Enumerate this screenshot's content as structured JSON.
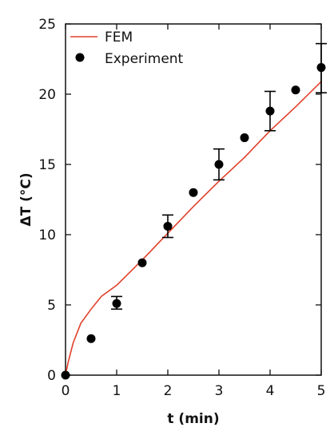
{
  "chart_data": {
    "type": "scatter",
    "xlabel": "t (min)",
    "ylabel": "ΔT (°C)",
    "xlim": [
      0,
      5
    ],
    "ylim": [
      0,
      25
    ],
    "xticks": [
      0,
      1,
      2,
      3,
      4,
      5
    ],
    "yticks": [
      0,
      5,
      10,
      15,
      20,
      25
    ],
    "legend_position": "top-left",
    "grid": false,
    "series": [
      {
        "name": "FEM",
        "kind": "line",
        "color": "#e0402a",
        "x": [
          0,
          0.05,
          0.15,
          0.3,
          0.5,
          0.7,
          1.0,
          1.5,
          2.0,
          2.5,
          3.0,
          3.5,
          4.0,
          4.5,
          5.0
        ],
        "y": [
          0,
          0.9,
          2.3,
          3.7,
          4.7,
          5.6,
          6.4,
          8.2,
          10.1,
          12.0,
          13.8,
          15.5,
          17.4,
          19.1,
          20.9
        ]
      },
      {
        "name": "Experiment",
        "kind": "points",
        "color": "#000000",
        "x": [
          0,
          0.5,
          1.0,
          1.5,
          2.0,
          2.5,
          3.0,
          3.5,
          4.0,
          4.5,
          5.0
        ],
        "y": [
          0,
          2.6,
          5.1,
          8.0,
          10.6,
          13.0,
          15.0,
          16.9,
          18.8,
          20.3,
          21.9
        ],
        "err_low": [
          null,
          null,
          4.7,
          null,
          9.8,
          null,
          13.9,
          null,
          17.4,
          null,
          20.1
        ],
        "err_high": [
          null,
          null,
          5.6,
          null,
          11.4,
          null,
          16.1,
          null,
          20.2,
          null,
          23.6
        ]
      }
    ]
  }
}
